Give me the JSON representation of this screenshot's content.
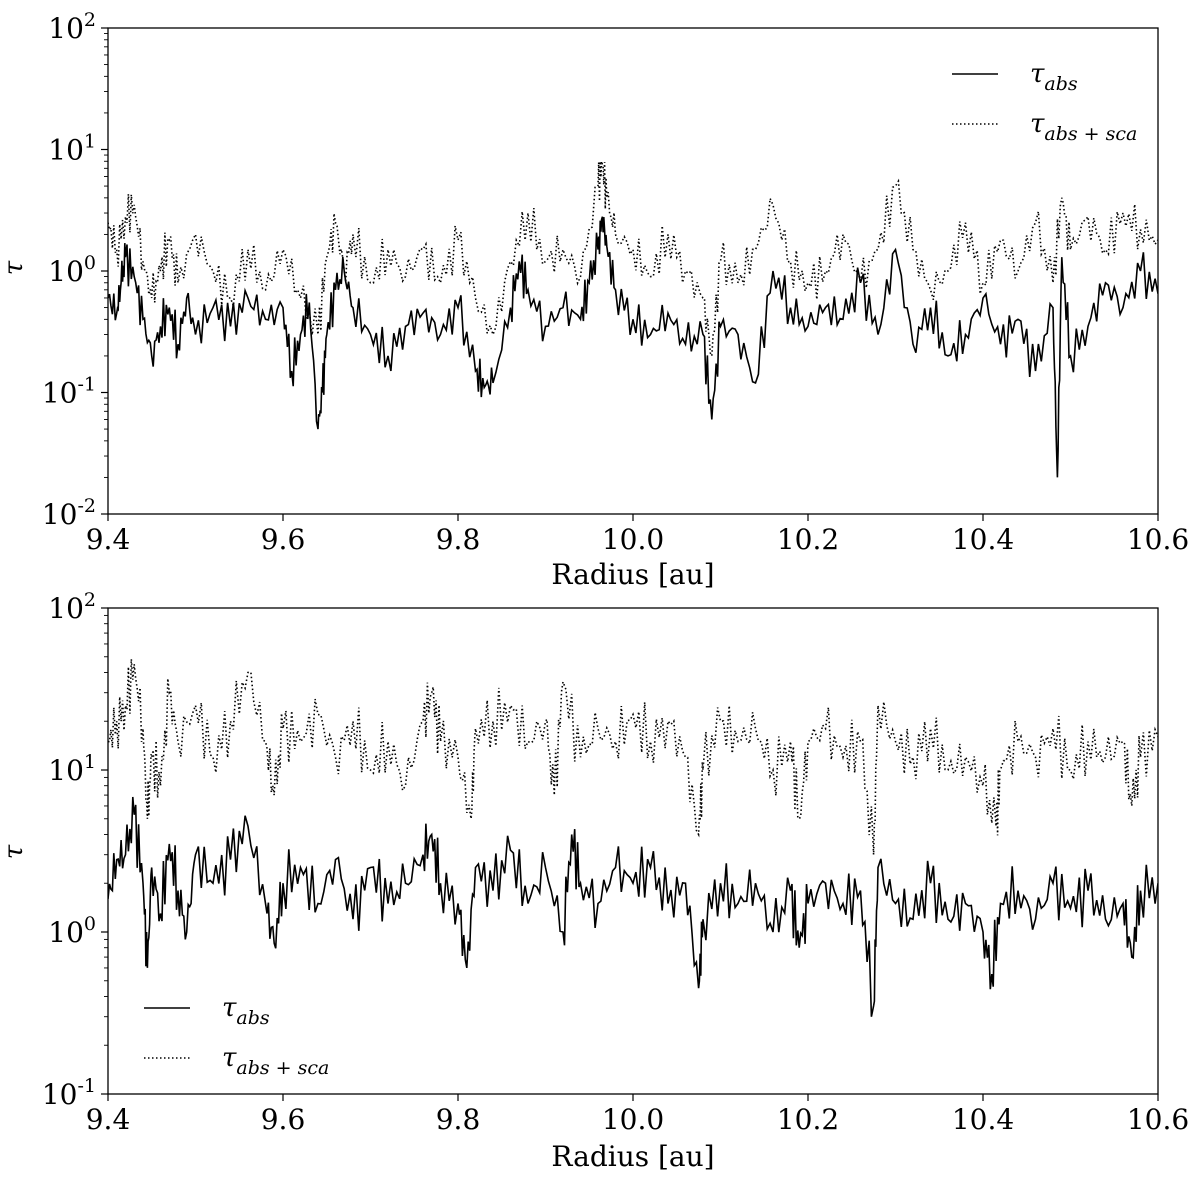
{
  "chart_data": [
    {
      "type": "line",
      "xlabel": "Radius [au]",
      "ylabel": "τ",
      "xlim": [
        9.4,
        10.6
      ],
      "ylim": [
        0.01,
        100
      ],
      "yscale": "log",
      "x_ticks": [
        "9.4",
        "9.6",
        "9.8",
        "10.0",
        "10.2",
        "10.4",
        "10.6"
      ],
      "y_tick_exponents": [
        "-2",
        "-1",
        "0",
        "1",
        "2"
      ],
      "y_tick_base": "10",
      "grid": false,
      "legend_position": "top-right",
      "series": [
        {
          "name": "τ_abs",
          "legend_main": "τ",
          "legend_sub": "abs",
          "style": "solid",
          "x": [
            9.4,
            9.41,
            9.415,
            9.42,
            9.43,
            9.44,
            9.45,
            9.46,
            9.47,
            9.48,
            9.49,
            9.5,
            9.52,
            9.54,
            9.56,
            9.58,
            9.6,
            9.61,
            9.62,
            9.63,
            9.64,
            9.645,
            9.65,
            9.66,
            9.67,
            9.68,
            9.7,
            9.72,
            9.74,
            9.76,
            9.78,
            9.8,
            9.82,
            9.83,
            9.84,
            9.86,
            9.87,
            9.88,
            9.9,
            9.92,
            9.94,
            9.95,
            9.96,
            9.965,
            9.97,
            9.98,
            10.0,
            10.02,
            10.04,
            10.06,
            10.08,
            10.09,
            10.1,
            10.12,
            10.14,
            10.16,
            10.18,
            10.2,
            10.22,
            10.24,
            10.26,
            10.28,
            10.3,
            10.32,
            10.34,
            10.36,
            10.38,
            10.4,
            10.42,
            10.44,
            10.46,
            10.48,
            10.485,
            10.49,
            10.5,
            10.52,
            10.54,
            10.56,
            10.58,
            10.6
          ],
          "values": [
            0.6,
            0.45,
            0.8,
            1.3,
            0.9,
            0.4,
            0.2,
            0.35,
            0.5,
            0.25,
            0.6,
            0.3,
            0.5,
            0.35,
            0.6,
            0.4,
            0.5,
            0.15,
            0.3,
            0.55,
            0.05,
            0.1,
            0.3,
            0.7,
            1.0,
            0.5,
            0.3,
            0.2,
            0.35,
            0.45,
            0.3,
            0.5,
            0.15,
            0.11,
            0.12,
            0.5,
            1.2,
            0.7,
            0.35,
            0.5,
            0.4,
            0.8,
            1.5,
            2.8,
            1.6,
            0.7,
            0.4,
            0.3,
            0.45,
            0.25,
            0.3,
            0.06,
            0.35,
            0.3,
            0.12,
            1.0,
            0.5,
            0.35,
            0.5,
            0.4,
            0.8,
            0.3,
            1.5,
            0.25,
            0.5,
            0.2,
            0.3,
            0.6,
            0.25,
            0.4,
            0.15,
            0.5,
            0.02,
            1.3,
            0.2,
            0.35,
            0.8,
            0.5,
            1.0,
            0.65
          ]
        },
        {
          "name": "τ_abs+sca",
          "legend_main": "τ",
          "legend_sub": "abs + sca",
          "style": "dotted",
          "x": [
            9.4,
            9.41,
            9.42,
            9.43,
            9.44,
            9.45,
            9.46,
            9.47,
            9.48,
            9.5,
            9.52,
            9.54,
            9.56,
            9.58,
            9.6,
            9.62,
            9.64,
            9.65,
            9.66,
            9.67,
            9.68,
            9.7,
            9.72,
            9.74,
            9.76,
            9.78,
            9.8,
            9.82,
            9.84,
            9.86,
            9.88,
            9.9,
            9.92,
            9.94,
            9.96,
            9.965,
            9.97,
            9.98,
            10.0,
            10.02,
            10.04,
            10.06,
            10.08,
            10.09,
            10.1,
            10.12,
            10.14,
            10.16,
            10.18,
            10.2,
            10.22,
            10.24,
            10.26,
            10.28,
            10.3,
            10.32,
            10.34,
            10.36,
            10.38,
            10.4,
            10.42,
            10.44,
            10.46,
            10.48,
            10.49,
            10.5,
            10.52,
            10.54,
            10.56,
            10.58,
            10.6
          ],
          "values": [
            2.5,
            1.5,
            2.8,
            3.5,
            1.2,
            0.6,
            1.0,
            1.8,
            0.8,
            2.0,
            1.0,
            0.6,
            1.5,
            0.7,
            1.5,
            0.6,
            0.3,
            1.3,
            2.5,
            1.0,
            2.0,
            0.8,
            1.5,
            0.9,
            1.5,
            0.8,
            1.8,
            0.6,
            0.3,
            1.2,
            3.0,
            1.2,
            1.5,
            0.9,
            5.0,
            7.5,
            4.0,
            2.0,
            1.5,
            0.9,
            2.0,
            1.0,
            0.6,
            0.2,
            1.2,
            0.8,
            1.5,
            3.5,
            1.2,
            0.8,
            1.0,
            2.0,
            0.8,
            1.5,
            5.0,
            1.5,
            0.7,
            1.0,
            2.5,
            0.8,
            1.8,
            1.0,
            2.5,
            0.8,
            4.0,
            1.5,
            2.8,
            1.5,
            3.0,
            2.2,
            1.8
          ]
        }
      ]
    },
    {
      "type": "line",
      "xlabel": "Radius [au]",
      "ylabel": "τ",
      "xlim": [
        9.4,
        10.6
      ],
      "ylim": [
        0.1,
        100
      ],
      "yscale": "log",
      "x_ticks": [
        "9.4",
        "9.6",
        "9.8",
        "10.0",
        "10.2",
        "10.4",
        "10.6"
      ],
      "y_tick_exponents": [
        "-1",
        "0",
        "1",
        "2"
      ],
      "y_tick_base": "10",
      "grid": false,
      "legend_position": "bottom-left",
      "series": [
        {
          "name": "τ_abs",
          "legend_main": "τ",
          "legend_sub": "abs",
          "style": "solid",
          "x": [
            9.4,
            9.41,
            9.42,
            9.43,
            9.44,
            9.445,
            9.45,
            9.46,
            9.47,
            9.48,
            9.49,
            9.5,
            9.52,
            9.54,
            9.56,
            9.58,
            9.59,
            9.6,
            9.62,
            9.64,
            9.66,
            9.68,
            9.7,
            9.72,
            9.74,
            9.76,
            9.77,
            9.78,
            9.8,
            9.81,
            9.82,
            9.84,
            9.86,
            9.88,
            9.9,
            9.92,
            9.93,
            9.94,
            9.96,
            9.98,
            10.0,
            10.02,
            10.04,
            10.06,
            10.075,
            10.08,
            10.1,
            10.12,
            10.14,
            10.16,
            10.18,
            10.19,
            10.2,
            10.22,
            10.24,
            10.26,
            10.275,
            10.28,
            10.3,
            10.32,
            10.34,
            10.36,
            10.38,
            10.4,
            10.41,
            10.42,
            10.44,
            10.46,
            10.48,
            10.5,
            10.52,
            10.54,
            10.56,
            10.57,
            10.58,
            10.6
          ],
          "values": [
            1.6,
            2.8,
            3.0,
            5.3,
            2.0,
            0.6,
            2.5,
            1.3,
            3.5,
            1.8,
            1.0,
            3.0,
            2.0,
            2.8,
            4.5,
            1.5,
            0.85,
            2.0,
            2.5,
            1.5,
            2.8,
            1.2,
            2.5,
            1.5,
            2.0,
            3.0,
            4.0,
            2.0,
            1.5,
            0.6,
            2.5,
            1.8,
            3.2,
            1.5,
            2.5,
            1.0,
            4.0,
            2.0,
            1.5,
            2.5,
            2.0,
            2.5,
            1.5,
            2.0,
            0.45,
            1.2,
            2.0,
            1.5,
            2.0,
            1.0,
            1.8,
            0.8,
            1.5,
            2.0,
            1.5,
            1.8,
            0.35,
            2.5,
            1.5,
            1.2,
            2.0,
            1.2,
            1.5,
            1.0,
            0.55,
            1.5,
            1.8,
            1.2,
            2.0,
            1.4,
            1.8,
            1.2,
            1.5,
            0.7,
            1.8,
            2.0
          ]
        },
        {
          "name": "τ_abs+sca",
          "legend_main": "τ",
          "legend_sub": "abs + sca",
          "style": "dotted",
          "x": [
            9.4,
            9.41,
            9.42,
            9.43,
            9.44,
            9.445,
            9.45,
            9.46,
            9.47,
            9.48,
            9.5,
            9.52,
            9.54,
            9.56,
            9.58,
            9.59,
            9.6,
            9.62,
            9.64,
            9.66,
            9.68,
            9.7,
            9.72,
            9.74,
            9.76,
            9.77,
            9.78,
            9.8,
            9.815,
            9.82,
            9.84,
            9.86,
            9.88,
            9.9,
            9.91,
            9.92,
            9.94,
            9.96,
            9.98,
            10.0,
            10.02,
            10.04,
            10.06,
            10.075,
            10.08,
            10.1,
            10.12,
            10.14,
            10.16,
            10.18,
            10.19,
            10.2,
            10.22,
            10.24,
            10.26,
            10.275,
            10.28,
            10.3,
            10.32,
            10.34,
            10.36,
            10.38,
            10.4,
            10.415,
            10.42,
            10.44,
            10.46,
            10.48,
            10.5,
            10.52,
            10.54,
            10.56,
            10.57,
            10.58,
            10.6
          ],
          "values": [
            15,
            20,
            25,
            45,
            18,
            5.0,
            12,
            8,
            30,
            15,
            25,
            12,
            20,
            40,
            15,
            7,
            18,
            15,
            22,
            12,
            20,
            10,
            15,
            8,
            20,
            30,
            15,
            12,
            5.0,
            18,
            20,
            25,
            15,
            20,
            7,
            35,
            12,
            18,
            15,
            22,
            15,
            20,
            12,
            4.0,
            10,
            20,
            15,
            18,
            10,
            15,
            5.0,
            15,
            18,
            12,
            15,
            3.0,
            25,
            15,
            12,
            18,
            10,
            12,
            8,
            4.5,
            10,
            15,
            12,
            18,
            10,
            15,
            12,
            15,
            6,
            12,
            16
          ]
        }
      ]
    }
  ]
}
